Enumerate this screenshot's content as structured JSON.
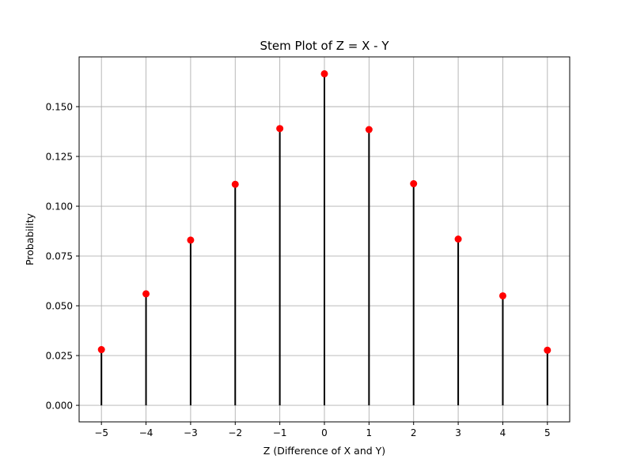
{
  "chart_data": {
    "type": "stem",
    "title": "Stem Plot of Z = X - Y",
    "xlabel": "Z (Difference of X and Y)",
    "ylabel": "Probability",
    "x": [
      -5,
      -4,
      -3,
      -2,
      -1,
      0,
      1,
      2,
      3,
      4,
      5
    ],
    "y": [
      0.028,
      0.056,
      0.083,
      0.111,
      0.139,
      0.1665,
      0.1385,
      0.1113,
      0.0835,
      0.055,
      0.0277
    ],
    "xlim": [
      -5.5,
      5.5
    ],
    "ylim": [
      -0.0083,
      0.175
    ],
    "xticks": [
      -5,
      -4,
      -3,
      -2,
      -1,
      0,
      1,
      2,
      3,
      4,
      5
    ],
    "xtick_labels": [
      "−5",
      "−4",
      "−3",
      "−2",
      "−1",
      "0",
      "1",
      "2",
      "3",
      "4",
      "5"
    ],
    "yticks": [
      0,
      0.025,
      0.05,
      0.075,
      0.1,
      0.125,
      0.15
    ],
    "ytick_labels": [
      "0.000",
      "0.025",
      "0.050",
      "0.075",
      "0.100",
      "0.125",
      "0.150"
    ],
    "grid": true,
    "colors": {
      "stem": "#000000",
      "marker": "#ff0000",
      "grid": "#b0b0b0"
    }
  }
}
